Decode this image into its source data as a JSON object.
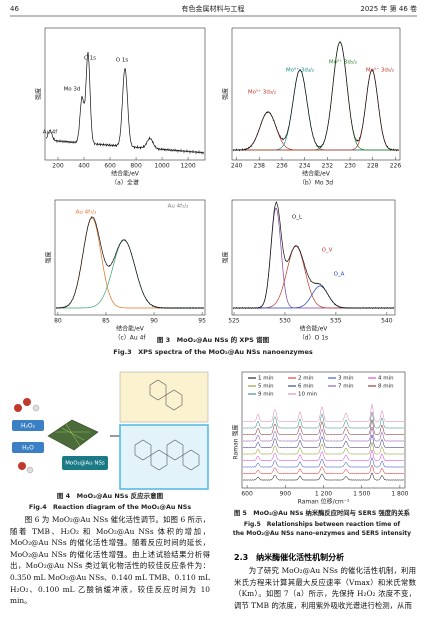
{
  "header": {
    "page": "46",
    "journal": "有色金属材料与工程",
    "issue": "2025 年 第 46 卷"
  },
  "fig3": {
    "panels": [
      {
        "caption": "（a）全谱",
        "xlabel": "结合能/eV",
        "ylabel": "强度",
        "xlim": [
          100,
          1330
        ],
        "xticks": [
          200,
          400,
          600,
          800,
          1000,
          1200
        ],
        "peak_labels": [
          "Au 4f",
          "Mo 3d",
          "C 1s",
          "O 1s"
        ]
      },
      {
        "caption": "（b）Mo 3d",
        "xlabel": "结合能/eV",
        "ylabel": "强度",
        "xlim": [
          240.4,
          225.6
        ],
        "xticks": [
          240,
          238,
          236,
          234,
          232,
          230,
          228,
          226
        ],
        "peak_labels": [
          "Mo⁵⁺ 3d₃/₂",
          "Mo⁶⁺ 3d₃/₂",
          "Mo⁶⁺ 3d₅/₂",
          "Mo⁵⁺ 3d₅/₂"
        ]
      },
      {
        "caption": "（c）Au 4f",
        "xlabel": "结合能/eV",
        "ylabel": "强度",
        "xlim": [
          79.7,
          95.3
        ],
        "xticks": [
          80,
          85,
          90,
          95
        ],
        "peak_labels": [
          "Au 4f₇/₂",
          "Au 4f₅/₂"
        ]
      },
      {
        "caption": "（d）O 1s",
        "xlabel": "结合能/eV",
        "ylabel": "强度",
        "xlim": [
          524.8,
          540.8
        ],
        "xticks": [
          525,
          530,
          535,
          540
        ],
        "peak_labels": [
          "O_L",
          "O_V",
          "O_A"
        ]
      }
    ],
    "caption_cn": "图 3　MoO₂@Au NSs 的 XPS 谱图",
    "caption_en": "Fig.3　XPS spectra of the MoO₂@Au NSs nanoenzymes"
  },
  "fig4": {
    "labels": [
      "H₂O₂",
      "H₂O",
      "MoO₂@Au NSs"
    ],
    "caption_cn": "图 4　MoO₂@Au NSs 反应示意图",
    "caption_en": "Fig.4　Reaction diagram of the MoO₂@Au NSs"
  },
  "fig5": {
    "xlabel": "Raman 位移/cm⁻¹",
    "ylabel": "Raman 强度",
    "xlim": [
      560,
      1840
    ],
    "xticks": [
      600,
      900,
      {
        "value": 1200,
        "label": "1 200"
      },
      {
        "value": 1500,
        "label": "1 500"
      },
      {
        "value": 1800,
        "label": "1 800"
      }
    ],
    "legend": [
      {
        "name": "1 min",
        "color": "#000000"
      },
      {
        "name": "2 min",
        "color": "#e41a1c"
      },
      {
        "name": "3 min",
        "color": "#1f3fbf"
      },
      {
        "name": "4 min",
        "color": "#d62fd6"
      },
      {
        "name": "5 min",
        "color": "#8a8a1a"
      },
      {
        "name": "6 min",
        "color": "#1a237e"
      },
      {
        "name": "7 min",
        "color": "#7b3fa0"
      },
      {
        "name": "8 min",
        "color": "#7a1f1f"
      },
      {
        "name": "9 min",
        "color": "#2a7a7a"
      },
      {
        "name": "10 min",
        "color": "#e07ab0"
      }
    ],
    "caption_cn": "图 5　MoO₂@Au NSs 纳米酶反应时间与 SERS 强度的关系",
    "caption_en": "Fig.5　Relationships between reaction time of the MoO₂@Au NSs nano-enzymes and SERS intensity"
  },
  "left_text": "图 6 为 MoO₂@Au NSs 催化活性调节。如图 6 所示，随着 TMB、H₂O₂ 和 MoO₂@Au NSs 体积的增加，MoO₂@Au NSs 的催化活性增强。随着反应时间的延长，MoO₂@Au NSs 的催化活性增强。由上述试验结果分析得出，MoO₂@Au NSs 类过氧化物活性的较佳反应条件为：0.350 mL MoO₂@Au NSs、0.140 mL TMB、0.110 mL H₂O₂、0.100 mL 乙酸钠缓冲液，较佳反应时间为 10 min。",
  "section": {
    "heading": "2.3　纳米酶催化活性机制分析",
    "text": "为了研究 MoO₂@Au NSs 的催化活性机制，利用米氏方程来计算其最大反应速率（Vmax）和米氏常数（Km）。如图 7（a）所示，先保持 H₂O₂ 浓度不变，调节 TMB 的浓度，利用紫外吸收光谱进行检测，从而"
  }
}
